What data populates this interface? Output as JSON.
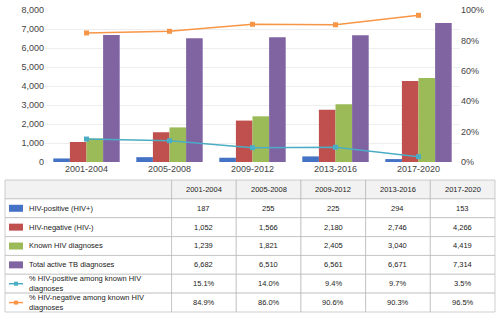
{
  "chart_data": {
    "type": "bar",
    "categories": [
      "2001-2004",
      "2005-2008",
      "2009-2012",
      "2013-2016",
      "2017-2020"
    ],
    "series": [
      {
        "name": "HIV-positive (HIV+)",
        "type": "bar",
        "color": "#4472C4",
        "values": [
          187,
          255,
          225,
          294,
          153
        ],
        "value_labels": [
          "187",
          "255",
          "225",
          "294",
          "153"
        ]
      },
      {
        "name": "HIV-negative (HIV-)",
        "type": "bar",
        "color": "#C0504D",
        "values": [
          1052,
          1566,
          2180,
          2746,
          4266
        ],
        "value_labels": [
          "1,052",
          "1,566",
          "2,180",
          "2,746",
          "4,266"
        ]
      },
      {
        "name": "Known HIV diagnoses",
        "type": "bar",
        "color": "#9BBB59",
        "values": [
          1239,
          1821,
          2405,
          3040,
          4419
        ],
        "value_labels": [
          "1,239",
          "1,821",
          "2,405",
          "3,040",
          "4,419"
        ]
      },
      {
        "name": "Total active TB diagnoses",
        "type": "bar",
        "color": "#8064A2",
        "values": [
          6682,
          6510,
          6561,
          6671,
          7314
        ],
        "value_labels": [
          "6,682",
          "6,510",
          "6,561",
          "6,671",
          "7,314"
        ]
      },
      {
        "name": "% HIV-positive among known HIV\ndiagnoses",
        "type": "line",
        "axis": "y2",
        "color": "#4BACC6",
        "marker": "square",
        "values": [
          15.1,
          14.0,
          9.4,
          9.7,
          3.5
        ],
        "value_labels": [
          "15.1%",
          "14.0%",
          "9.4%",
          "9.7%",
          "3.5%"
        ]
      },
      {
        "name": "% HIV-negative among known HIV\ndiagnoses",
        "type": "line",
        "axis": "y2",
        "color": "#F79646",
        "marker": "square",
        "values": [
          84.9,
          86.0,
          90.6,
          90.3,
          96.5
        ],
        "value_labels": [
          "84.9%",
          "86.0%",
          "90.6%",
          "90.3%",
          "96.5%"
        ]
      }
    ],
    "ylim": [
      0,
      8000
    ],
    "yticks": [
      0,
      {
        "value": 1000,
        "label": "1,000"
      },
      {
        "value": 2000,
        "label": "2,000"
      },
      {
        "value": 3000,
        "label": "3,000"
      },
      {
        "value": 4000,
        "label": "4,000"
      },
      {
        "value": 5000,
        "label": "5,000"
      },
      {
        "value": 6000,
        "label": "6,000"
      },
      {
        "value": 7000,
        "label": "7,000"
      },
      {
        "value": 8000,
        "label": "8,000"
      }
    ],
    "y2lim": [
      0,
      100
    ],
    "y2ticks": [
      {
        "value": 0,
        "label": "0%"
      },
      {
        "value": 20,
        "label": "20%"
      },
      {
        "value": 40,
        "label": "40%"
      },
      {
        "value": 60,
        "label": "60%"
      },
      {
        "value": 80,
        "label": "80%"
      },
      {
        "value": 100,
        "label": "100%"
      }
    ],
    "grid": true
  }
}
